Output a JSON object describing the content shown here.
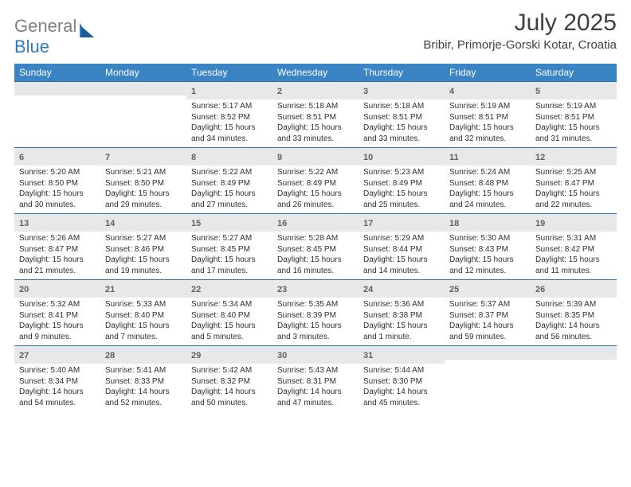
{
  "logo": {
    "word1": "General",
    "word2": "Blue"
  },
  "title": "July 2025",
  "location": "Bribir, Primorje-Gorski Kotar, Croatia",
  "weekdays": [
    "Sunday",
    "Monday",
    "Tuesday",
    "Wednesday",
    "Thursday",
    "Friday",
    "Saturday"
  ],
  "colors": {
    "header_bg": "#3a84c4",
    "daynum_bg": "#e8e8e8",
    "border": "#2f6fa8"
  },
  "weeks": [
    [
      {
        "empty": true
      },
      {
        "empty": true
      },
      {
        "day": "1",
        "sunrise": "Sunrise: 5:17 AM",
        "sunset": "Sunset: 8:52 PM",
        "daylight1": "Daylight: 15 hours",
        "daylight2": "and 34 minutes."
      },
      {
        "day": "2",
        "sunrise": "Sunrise: 5:18 AM",
        "sunset": "Sunset: 8:51 PM",
        "daylight1": "Daylight: 15 hours",
        "daylight2": "and 33 minutes."
      },
      {
        "day": "3",
        "sunrise": "Sunrise: 5:18 AM",
        "sunset": "Sunset: 8:51 PM",
        "daylight1": "Daylight: 15 hours",
        "daylight2": "and 33 minutes."
      },
      {
        "day": "4",
        "sunrise": "Sunrise: 5:19 AM",
        "sunset": "Sunset: 8:51 PM",
        "daylight1": "Daylight: 15 hours",
        "daylight2": "and 32 minutes."
      },
      {
        "day": "5",
        "sunrise": "Sunrise: 5:19 AM",
        "sunset": "Sunset: 8:51 PM",
        "daylight1": "Daylight: 15 hours",
        "daylight2": "and 31 minutes."
      }
    ],
    [
      {
        "day": "6",
        "sunrise": "Sunrise: 5:20 AM",
        "sunset": "Sunset: 8:50 PM",
        "daylight1": "Daylight: 15 hours",
        "daylight2": "and 30 minutes."
      },
      {
        "day": "7",
        "sunrise": "Sunrise: 5:21 AM",
        "sunset": "Sunset: 8:50 PM",
        "daylight1": "Daylight: 15 hours",
        "daylight2": "and 29 minutes."
      },
      {
        "day": "8",
        "sunrise": "Sunrise: 5:22 AM",
        "sunset": "Sunset: 8:49 PM",
        "daylight1": "Daylight: 15 hours",
        "daylight2": "and 27 minutes."
      },
      {
        "day": "9",
        "sunrise": "Sunrise: 5:22 AM",
        "sunset": "Sunset: 8:49 PM",
        "daylight1": "Daylight: 15 hours",
        "daylight2": "and 26 minutes."
      },
      {
        "day": "10",
        "sunrise": "Sunrise: 5:23 AM",
        "sunset": "Sunset: 8:49 PM",
        "daylight1": "Daylight: 15 hours",
        "daylight2": "and 25 minutes."
      },
      {
        "day": "11",
        "sunrise": "Sunrise: 5:24 AM",
        "sunset": "Sunset: 8:48 PM",
        "daylight1": "Daylight: 15 hours",
        "daylight2": "and 24 minutes."
      },
      {
        "day": "12",
        "sunrise": "Sunrise: 5:25 AM",
        "sunset": "Sunset: 8:47 PM",
        "daylight1": "Daylight: 15 hours",
        "daylight2": "and 22 minutes."
      }
    ],
    [
      {
        "day": "13",
        "sunrise": "Sunrise: 5:26 AM",
        "sunset": "Sunset: 8:47 PM",
        "daylight1": "Daylight: 15 hours",
        "daylight2": "and 21 minutes."
      },
      {
        "day": "14",
        "sunrise": "Sunrise: 5:27 AM",
        "sunset": "Sunset: 8:46 PM",
        "daylight1": "Daylight: 15 hours",
        "daylight2": "and 19 minutes."
      },
      {
        "day": "15",
        "sunrise": "Sunrise: 5:27 AM",
        "sunset": "Sunset: 8:45 PM",
        "daylight1": "Daylight: 15 hours",
        "daylight2": "and 17 minutes."
      },
      {
        "day": "16",
        "sunrise": "Sunrise: 5:28 AM",
        "sunset": "Sunset: 8:45 PM",
        "daylight1": "Daylight: 15 hours",
        "daylight2": "and 16 minutes."
      },
      {
        "day": "17",
        "sunrise": "Sunrise: 5:29 AM",
        "sunset": "Sunset: 8:44 PM",
        "daylight1": "Daylight: 15 hours",
        "daylight2": "and 14 minutes."
      },
      {
        "day": "18",
        "sunrise": "Sunrise: 5:30 AM",
        "sunset": "Sunset: 8:43 PM",
        "daylight1": "Daylight: 15 hours",
        "daylight2": "and 12 minutes."
      },
      {
        "day": "19",
        "sunrise": "Sunrise: 5:31 AM",
        "sunset": "Sunset: 8:42 PM",
        "daylight1": "Daylight: 15 hours",
        "daylight2": "and 11 minutes."
      }
    ],
    [
      {
        "day": "20",
        "sunrise": "Sunrise: 5:32 AM",
        "sunset": "Sunset: 8:41 PM",
        "daylight1": "Daylight: 15 hours",
        "daylight2": "and 9 minutes."
      },
      {
        "day": "21",
        "sunrise": "Sunrise: 5:33 AM",
        "sunset": "Sunset: 8:40 PM",
        "daylight1": "Daylight: 15 hours",
        "daylight2": "and 7 minutes."
      },
      {
        "day": "22",
        "sunrise": "Sunrise: 5:34 AM",
        "sunset": "Sunset: 8:40 PM",
        "daylight1": "Daylight: 15 hours",
        "daylight2": "and 5 minutes."
      },
      {
        "day": "23",
        "sunrise": "Sunrise: 5:35 AM",
        "sunset": "Sunset: 8:39 PM",
        "daylight1": "Daylight: 15 hours",
        "daylight2": "and 3 minutes."
      },
      {
        "day": "24",
        "sunrise": "Sunrise: 5:36 AM",
        "sunset": "Sunset: 8:38 PM",
        "daylight1": "Daylight: 15 hours",
        "daylight2": "and 1 minute."
      },
      {
        "day": "25",
        "sunrise": "Sunrise: 5:37 AM",
        "sunset": "Sunset: 8:37 PM",
        "daylight1": "Daylight: 14 hours",
        "daylight2": "and 59 minutes."
      },
      {
        "day": "26",
        "sunrise": "Sunrise: 5:39 AM",
        "sunset": "Sunset: 8:35 PM",
        "daylight1": "Daylight: 14 hours",
        "daylight2": "and 56 minutes."
      }
    ],
    [
      {
        "day": "27",
        "sunrise": "Sunrise: 5:40 AM",
        "sunset": "Sunset: 8:34 PM",
        "daylight1": "Daylight: 14 hours",
        "daylight2": "and 54 minutes."
      },
      {
        "day": "28",
        "sunrise": "Sunrise: 5:41 AM",
        "sunset": "Sunset: 8:33 PM",
        "daylight1": "Daylight: 14 hours",
        "daylight2": "and 52 minutes."
      },
      {
        "day": "29",
        "sunrise": "Sunrise: 5:42 AM",
        "sunset": "Sunset: 8:32 PM",
        "daylight1": "Daylight: 14 hours",
        "daylight2": "and 50 minutes."
      },
      {
        "day": "30",
        "sunrise": "Sunrise: 5:43 AM",
        "sunset": "Sunset: 8:31 PM",
        "daylight1": "Daylight: 14 hours",
        "daylight2": "and 47 minutes."
      },
      {
        "day": "31",
        "sunrise": "Sunrise: 5:44 AM",
        "sunset": "Sunset: 8:30 PM",
        "daylight1": "Daylight: 14 hours",
        "daylight2": "and 45 minutes."
      },
      {
        "empty": true
      },
      {
        "empty": true
      }
    ]
  ]
}
